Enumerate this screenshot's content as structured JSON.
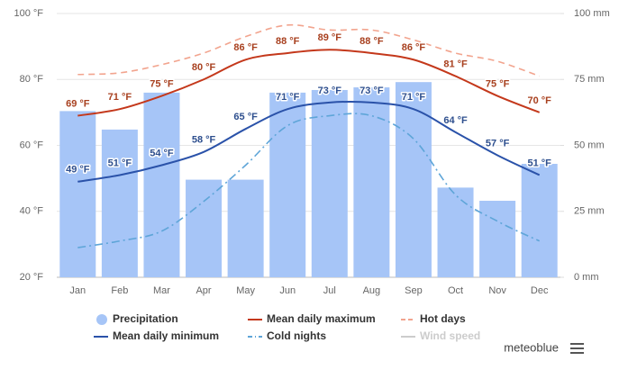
{
  "chart_data": {
    "type": "combo",
    "categories": [
      "Jan",
      "Feb",
      "Mar",
      "Apr",
      "May",
      "Jun",
      "Jul",
      "Aug",
      "Sep",
      "Oct",
      "Nov",
      "Dec"
    ],
    "ylim": [
      20,
      100
    ],
    "yticks": [
      {
        "value": 20,
        "label": "20 °F"
      },
      {
        "value": 40,
        "label": "40 °F"
      },
      {
        "value": 60,
        "label": "60 °F"
      },
      {
        "value": 80,
        "label": "80 °F"
      },
      {
        "value": 100,
        "label": "100 °F"
      }
    ],
    "y2lim": [
      0,
      100
    ],
    "y2ticks": [
      {
        "value": 0,
        "label": "0 mm"
      },
      {
        "value": 25,
        "label": "25 mm"
      },
      {
        "value": 50,
        "label": "50 mm"
      },
      {
        "value": 75,
        "label": "75 mm"
      },
      {
        "value": 100,
        "label": "100 mm"
      }
    ],
    "grid": true,
    "series": [
      {
        "name": "Precipitation",
        "type": "bar",
        "axis": "y2",
        "color": "#a6c5f7",
        "values": [
          63,
          56,
          70,
          37,
          37,
          70,
          71,
          72,
          74,
          34,
          29,
          43
        ]
      },
      {
        "name": "Mean daily maximum",
        "type": "line",
        "style": "solid",
        "color": "#c4381b",
        "label_color": "#a8401f",
        "values": [
          69,
          71,
          75,
          80,
          86,
          88,
          89,
          88,
          86,
          81,
          75,
          70
        ],
        "value_labels": [
          "69 °F",
          "71 °F",
          "75 °F",
          "80 °F",
          "86 °F",
          "88 °F",
          "89 °F",
          "88 °F",
          "86 °F",
          "81 °F",
          "75 °F",
          "70 °F"
        ]
      },
      {
        "name": "Hot days",
        "type": "line",
        "style": "dashed",
        "color": "#f2a48e",
        "values": [
          81.5,
          82,
          84.5,
          88,
          93,
          96.5,
          95,
          95,
          92,
          88,
          85.5,
          81
        ]
      },
      {
        "name": "Mean daily minimum",
        "type": "line",
        "style": "solid",
        "color": "#2a52a9",
        "label_color": "#2e4f8e",
        "values": [
          49,
          51,
          54,
          58,
          65,
          71,
          73,
          73,
          71,
          64,
          57,
          51
        ],
        "value_labels": [
          "49 °F",
          "51 °F",
          "54 °F",
          "58 °F",
          "65 °F",
          "71 °F",
          "73 °F",
          "73 °F",
          "71 °F",
          "64 °F",
          "57 °F",
          "51 °F"
        ]
      },
      {
        "name": "Cold nights",
        "type": "line",
        "style": "dashdot",
        "color": "#5ea5d8",
        "values": [
          29,
          31,
          34,
          43,
          54,
          66,
          69,
          69,
          62,
          45,
          37,
          31
        ]
      },
      {
        "name": "Wind speed",
        "type": "line",
        "style": "solid",
        "color": "#cccccc",
        "hidden": true
      }
    ],
    "brand": "meteoblue"
  }
}
